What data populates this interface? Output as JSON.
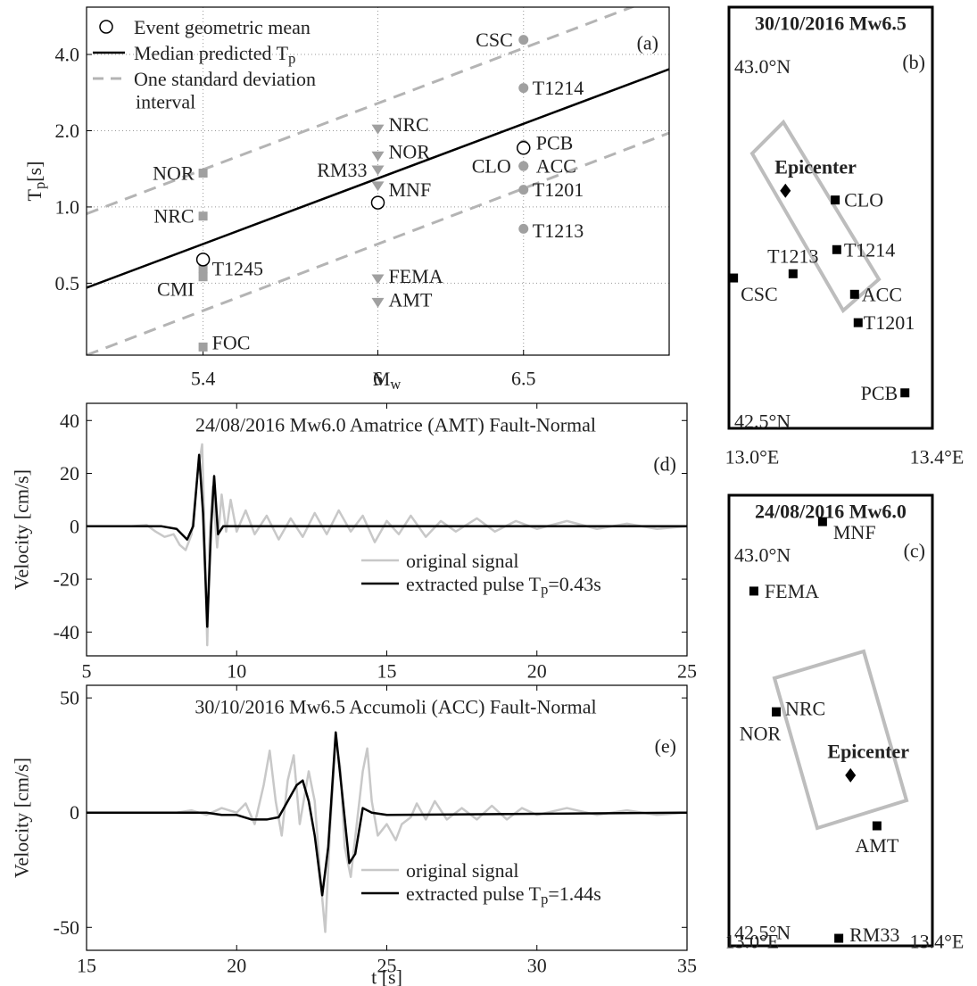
{
  "chart_data": [
    {
      "type": "scatter",
      "xlabel": "M",
      "xlabel_sub": "w",
      "ylabel": "T",
      "ylabel_sub": "p",
      "ylabel_rest": "[s]",
      "annotation": "(a)",
      "xlim": [
        5.0,
        7.0
      ],
      "ylim": [
        0.26,
        6.15
      ],
      "yscale": "log",
      "grid": true,
      "xticks": [
        5.4,
        6,
        6.5
      ],
      "yticks": [
        0.5,
        {
          "value": 1,
          "label": "1.0"
        },
        {
          "value": 2,
          "label": "2.0"
        },
        {
          "value": 4,
          "label": "4.0"
        }
      ],
      "series": [
        {
          "name": "Event geometric mean",
          "marker": "circle-open",
          "color": "#000000",
          "x": [
            5.4,
            6,
            6.5
          ],
          "values": [
            0.62,
            1.04,
            1.71
          ]
        },
        {
          "name": "Median predicted T",
          "name_sub": "p",
          "style": "solid",
          "color": "#000000",
          "x": [
            5.0,
            7.0
          ],
          "values": [
            0.48,
            3.5
          ]
        },
        {
          "name": "One standard deviation",
          "name_line2": "interval",
          "style": "dashed",
          "color": "#b4b4b4",
          "x": [
            5.0,
            7.0
          ],
          "values": [
            0.94,
            7.0
          ]
        },
        {
          "style": "dashed",
          "color": "#b4b4b4",
          "x": [
            5.0,
            7.0
          ],
          "values": [
            0.26,
            1.96
          ]
        }
      ],
      "station_color": "#a0a0a0",
      "stations": [
        {
          "label": "NOR",
          "x": 5.4,
          "value": 1.36,
          "marker": "square"
        },
        {
          "label": "NRC",
          "x": 5.4,
          "value": 0.92,
          "marker": "square"
        },
        {
          "label": "T1245",
          "x": 5.4,
          "value": 0.57,
          "marker": "square"
        },
        {
          "label": "CMI",
          "x": 5.4,
          "value": 0.53,
          "marker": "square"
        },
        {
          "label": "FOC",
          "x": 5.4,
          "value": 0.28,
          "marker": "square"
        },
        {
          "label": "NRC",
          "x": 6,
          "value": 2.03,
          "marker": "triangle"
        },
        {
          "label": "NOR",
          "x": 6,
          "value": 1.59,
          "marker": "triangle"
        },
        {
          "label": "RM33",
          "x": 6,
          "value": 1.4,
          "marker": "triangle"
        },
        {
          "label": "MNF",
          "x": 6,
          "value": 1.21,
          "marker": "triangle"
        },
        {
          "label": "FEMA",
          "x": 6,
          "value": 0.52,
          "marker": "triangle"
        },
        {
          "label": "AMT",
          "x": 6,
          "value": 0.42,
          "marker": "triangle"
        },
        {
          "label": "CSC",
          "x": 6.5,
          "value": 4.57,
          "marker": "circle"
        },
        {
          "label": "T1214",
          "x": 6.5,
          "value": 2.95,
          "marker": "circle"
        },
        {
          "label": "PCB",
          "x": 6.5,
          "value": 1.76,
          "marker": "circle"
        },
        {
          "label": "CLO",
          "x": 6.5,
          "value": 1.45,
          "marker": "circle"
        },
        {
          "label": "ACC",
          "x": 6.5,
          "value": 1.45,
          "marker": "circle"
        },
        {
          "label": "T1201",
          "x": 6.5,
          "value": 1.17,
          "marker": "circle"
        },
        {
          "label": "T1213",
          "x": 6.5,
          "value": 0.82,
          "marker": "circle"
        }
      ]
    },
    {
      "type": "map",
      "title": "30/10/2016 Mw6.5",
      "annotation": "(b)",
      "xlim": [
        13.0,
        13.4
      ],
      "ylim": [
        42.49,
        43.084
      ],
      "xticks": [
        {
          "value": 13,
          "label": "13.0°E"
        },
        {
          "value": 13.4,
          "label": "13.4°E"
        }
      ],
      "yticks": [
        {
          "value": 42.5,
          "label": "42.5°N"
        },
        {
          "value": 43,
          "label": "43.0°N"
        }
      ],
      "stations": [
        {
          "name": "CLO",
          "lon": 13.209,
          "lat": 42.812
        },
        {
          "name": "T1214",
          "lon": 13.212,
          "lat": 42.742
        },
        {
          "name": "T1213",
          "lon": 13.126,
          "lat": 42.708
        },
        {
          "name": "CSC",
          "lon": 13.009,
          "lat": 42.702
        },
        {
          "name": "ACC",
          "lon": 13.247,
          "lat": 42.679
        },
        {
          "name": "T1201",
          "lon": 13.254,
          "lat": 42.639
        },
        {
          "name": "PCB",
          "lon": 13.346,
          "lat": 42.54
        }
      ],
      "epicenter": {
        "name": "Epicenter",
        "lon": 13.111,
        "lat": 42.825
      }
    },
    {
      "type": "map",
      "title": "24/08/2016 Mw6.0",
      "annotation": "(c)",
      "xlim": [
        13.0,
        13.4
      ],
      "ylim": [
        42.482,
        43.079
      ],
      "xticks": [
        {
          "value": 13,
          "label": "13.0°E"
        },
        {
          "value": 13.4,
          "label": "13.4°E"
        }
      ],
      "yticks": [
        {
          "value": 42.5,
          "label": "42.5°N"
        },
        {
          "value": 43,
          "label": "43.0°N"
        }
      ],
      "stations": [
        {
          "name": "MNF",
          "lon": 13.184,
          "lat": 43.044
        },
        {
          "name": "FEMA",
          "lon": 13.049,
          "lat": 42.952
        },
        {
          "name": "NRC",
          "lon": 13.093,
          "lat": 42.792
        },
        {
          "name": "NOR",
          "lon": 13.093,
          "lat": 42.792
        },
        {
          "name": "AMT",
          "lon": 13.291,
          "lat": 42.641
        },
        {
          "name": "RM33",
          "lon": 13.216,
          "lat": 42.492
        }
      ],
      "epicenter": {
        "name": "Epicenter",
        "lon": 13.239,
        "lat": 42.708
      }
    },
    {
      "type": "line",
      "title": "24/08/2016 Mw6.0 Amatrice (AMT) Fault-Normal",
      "annotation": "(d)",
      "ylabel": "Velocity [cm/s]",
      "xlim": [
        5,
        25
      ],
      "ylim": [
        -49,
        46.5
      ],
      "xticks": [
        5,
        10,
        15,
        20,
        25
      ],
      "yticks": [
        -40,
        -20,
        0,
        20,
        40
      ],
      "series": [
        {
          "name": "original signal",
          "color": "#c8c8c8",
          "x": [
            5,
            6.5,
            7,
            7.3,
            7.6,
            7.9,
            8.1,
            8.3,
            8.5,
            8.7,
            8.85,
            8.95,
            9.02,
            9.1,
            9.2,
            9.35,
            9.5,
            9.65,
            9.8,
            10,
            10.3,
            10.6,
            11,
            11.4,
            11.8,
            12.2,
            12.6,
            13,
            13.4,
            13.8,
            14.2,
            14.6,
            15,
            15.4,
            15.8,
            16.3,
            16.8,
            17.3,
            18,
            18.6,
            19.3,
            20,
            21,
            22,
            23,
            24,
            25
          ],
          "values": [
            0,
            0,
            0.5,
            -2,
            -4,
            -3,
            -7,
            -9,
            -3,
            20,
            31,
            -10,
            -45,
            -5,
            15,
            -8,
            12,
            -2,
            10,
            -2,
            6,
            -3,
            4,
            -5,
            3,
            -4,
            5,
            -3,
            6,
            -2,
            4,
            -6,
            2,
            -3,
            4,
            -4,
            2,
            -2,
            3,
            -2,
            2,
            -1,
            2,
            -1,
            1,
            -1,
            0
          ]
        },
        {
          "name": "extracted pulse T",
          "name_sub": "p",
          "name_rest": "=0.43s",
          "color": "#000000",
          "x": [
            5,
            7.5,
            8,
            8.35,
            8.55,
            8.75,
            8.88,
            9.02,
            9.15,
            9.25,
            9.38,
            9.55,
            25
          ],
          "values": [
            0,
            0,
            -1,
            -5,
            0,
            27,
            5,
            -38,
            0,
            19,
            -3,
            0,
            0
          ]
        }
      ]
    },
    {
      "type": "line",
      "title": "30/10/2016 Mw6.5 Accumoli (ACC) Fault-Normal",
      "annotation": "(e)",
      "ylabel": "Velocity [cm/s]",
      "xlabel": "t [s]",
      "xlim": [
        15,
        35
      ],
      "ylim": [
        -60,
        55.5
      ],
      "xticks": [
        15,
        20,
        25,
        30,
        35
      ],
      "yticks": [
        -50,
        0,
        50
      ],
      "series": [
        {
          "name": "original signal",
          "color": "#c8c8c8",
          "x": [
            15,
            18,
            18.5,
            19,
            19.5,
            20,
            20.3,
            20.6,
            20.9,
            21.1,
            21.3,
            21.5,
            21.7,
            21.9,
            22.1,
            22.4,
            22.6,
            22.8,
            22.95,
            23.1,
            23.3,
            23.45,
            23.6,
            23.8,
            24,
            24.2,
            24.35,
            24.5,
            24.7,
            25,
            25.3,
            25.5,
            25.8,
            26,
            26.3,
            26.6,
            27,
            27.5,
            28,
            28.5,
            29,
            29.5,
            30,
            31,
            32,
            33,
            34,
            35
          ],
          "values": [
            0,
            0,
            1,
            -1,
            2,
            0,
            4,
            -5,
            12,
            27,
            5,
            -10,
            14,
            25,
            -5,
            18,
            5,
            -30,
            -52,
            -10,
            32,
            20,
            -15,
            -28,
            -5,
            18,
            28,
            5,
            -10,
            -5,
            -12,
            -5,
            -2,
            4,
            -3,
            5,
            -3,
            2,
            -3,
            3,
            -3,
            2,
            -1,
            2,
            -1,
            1,
            -1,
            0
          ]
        },
        {
          "name": "extracted pulse T",
          "name_sub": "p",
          "name_rest": "=1.44s",
          "color": "#000000",
          "x": [
            15,
            19,
            19.5,
            20,
            20.5,
            21,
            21.4,
            21.7,
            22,
            22.2,
            22.4,
            22.6,
            22.85,
            23.05,
            23.3,
            23.5,
            23.75,
            23.95,
            24.2,
            24.5,
            25,
            35
          ],
          "values": [
            0,
            0,
            -1,
            -1,
            -3,
            -3,
            -2,
            5,
            12,
            14,
            5,
            -10,
            -36,
            -15,
            35,
            10,
            -22,
            -18,
            2,
            0,
            -1,
            0
          ]
        }
      ]
    }
  ]
}
